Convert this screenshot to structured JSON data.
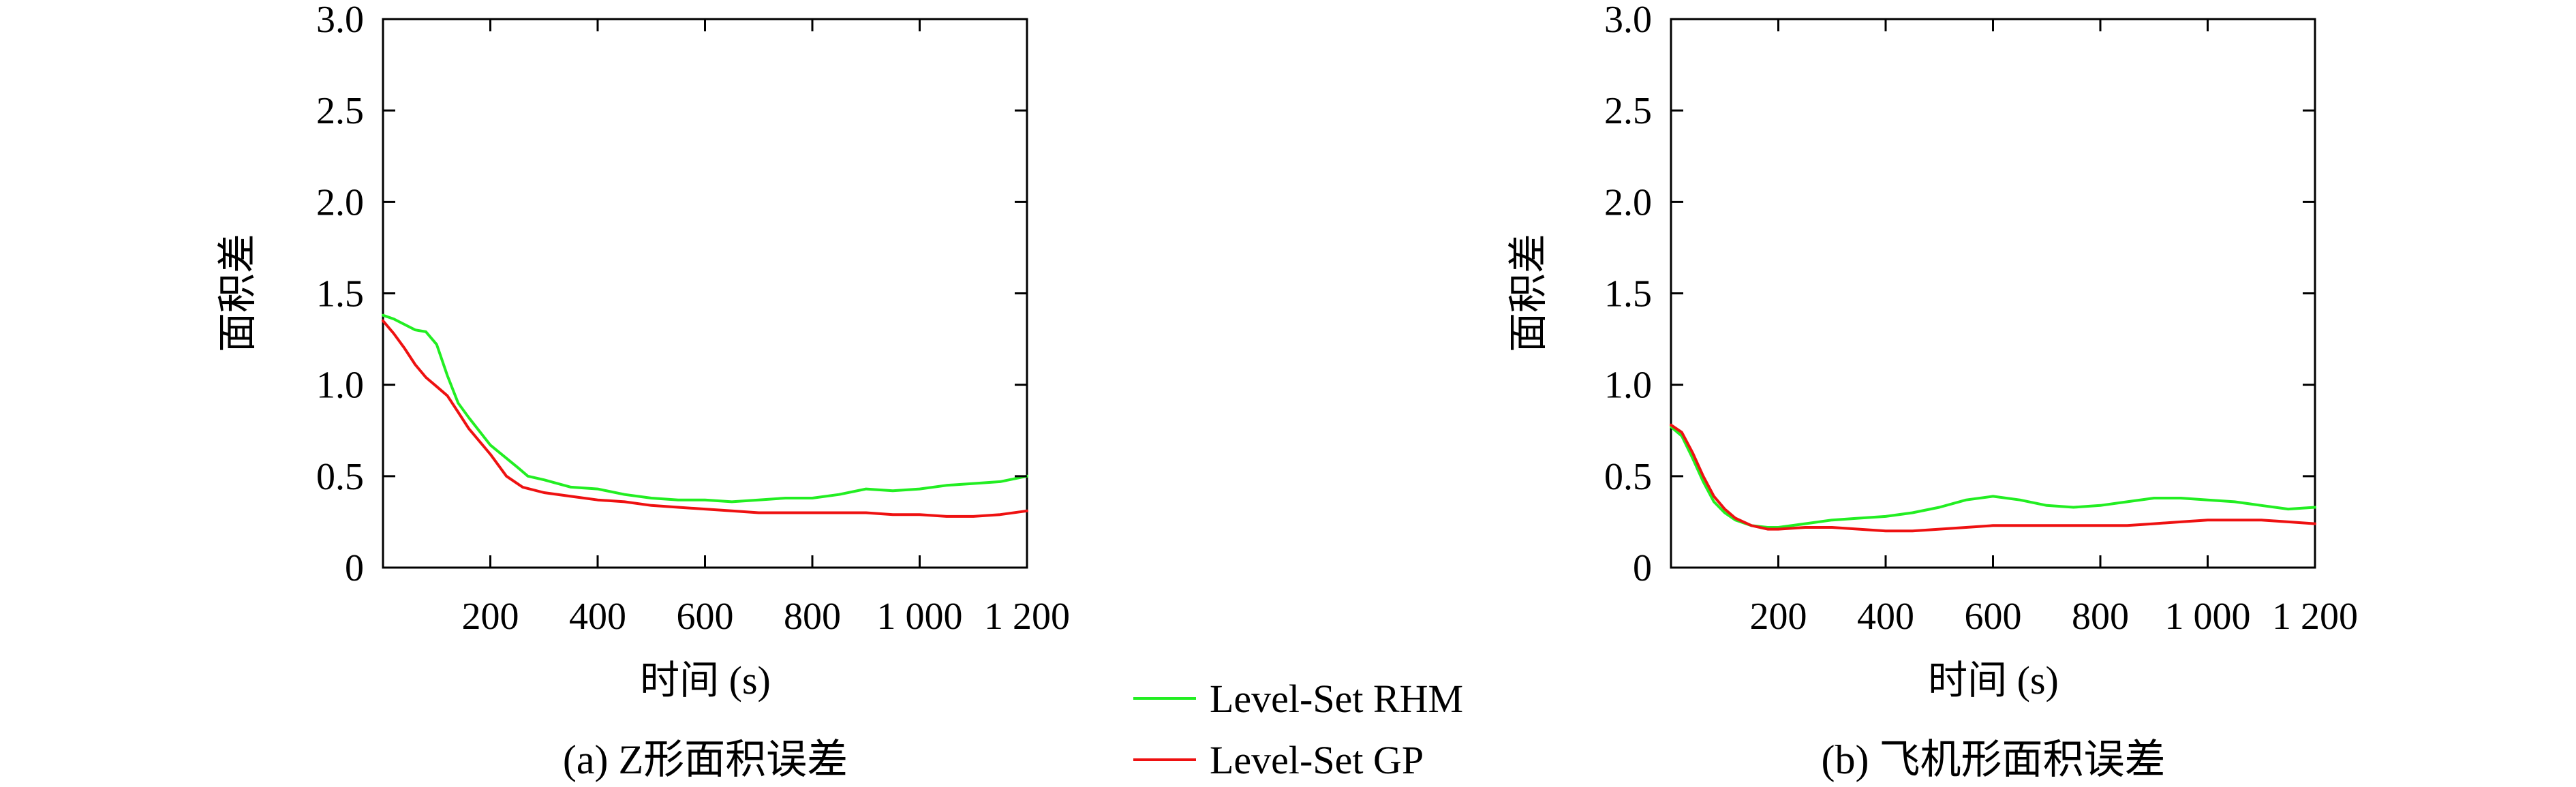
{
  "legend": {
    "items": [
      {
        "label": "Level-Set RHM",
        "color": "#22ee22"
      },
      {
        "label": "Level-Set GP",
        "color": "#ee1111"
      }
    ]
  },
  "chart_data": [
    {
      "type": "line",
      "caption": "(a) Z形面积误差",
      "xlabel": "时间 (s)",
      "ylabel": "面积差",
      "xlim": [
        0,
        1200
      ],
      "ylim": [
        0,
        3.0
      ],
      "xticks": [
        200,
        400,
        600,
        800,
        1000,
        1200
      ],
      "xtick_labels": [
        "200",
        "400",
        "600",
        "800",
        "1 000",
        "1 200"
      ],
      "yticks": [
        0,
        0.5,
        1.0,
        1.5,
        2.0,
        2.5,
        3.0
      ],
      "ytick_labels": [
        "0",
        "0.5",
        "1.0",
        "1.5",
        "2.0",
        "2.5",
        "3.0"
      ],
      "grid": false,
      "series": [
        {
          "name": "Level-Set RHM",
          "color": "#22ee22",
          "x": [
            0,
            20,
            40,
            60,
            80,
            100,
            120,
            140,
            160,
            200,
            250,
            270,
            300,
            350,
            400,
            450,
            500,
            550,
            600,
            650,
            700,
            750,
            800,
            850,
            900,
            950,
            1000,
            1050,
            1100,
            1150,
            1200
          ],
          "y": [
            1.38,
            1.36,
            1.33,
            1.3,
            1.29,
            1.22,
            1.05,
            0.9,
            0.82,
            0.67,
            0.55,
            0.5,
            0.48,
            0.44,
            0.43,
            0.4,
            0.38,
            0.37,
            0.37,
            0.36,
            0.37,
            0.38,
            0.38,
            0.4,
            0.43,
            0.42,
            0.43,
            0.45,
            0.46,
            0.47,
            0.5
          ]
        },
        {
          "name": "Level-Set GP",
          "color": "#ee1111",
          "x": [
            0,
            20,
            40,
            60,
            80,
            100,
            120,
            140,
            160,
            200,
            230,
            260,
            300,
            350,
            400,
            450,
            500,
            550,
            600,
            650,
            700,
            750,
            800,
            850,
            900,
            950,
            1000,
            1050,
            1100,
            1150,
            1200
          ],
          "y": [
            1.35,
            1.28,
            1.2,
            1.11,
            1.04,
            0.99,
            0.94,
            0.85,
            0.76,
            0.62,
            0.5,
            0.44,
            0.41,
            0.39,
            0.37,
            0.36,
            0.34,
            0.33,
            0.32,
            0.31,
            0.3,
            0.3,
            0.3,
            0.3,
            0.3,
            0.29,
            0.29,
            0.28,
            0.28,
            0.29,
            0.31
          ]
        }
      ]
    },
    {
      "type": "line",
      "caption": "(b) 飞机形面积误差",
      "xlabel": "时间 (s)",
      "ylabel": "面积差",
      "xlim": [
        0,
        1200
      ],
      "ylim": [
        0,
        3.0
      ],
      "xticks": [
        200,
        400,
        600,
        800,
        1000,
        1200
      ],
      "xtick_labels": [
        "200",
        "400",
        "600",
        "800",
        "1 000",
        "1 200"
      ],
      "yticks": [
        0,
        0.5,
        1.0,
        1.5,
        2.0,
        2.5,
        3.0
      ],
      "ytick_labels": [
        "0",
        "0.5",
        "1.0",
        "1.5",
        "2.0",
        "2.5",
        "3.0"
      ],
      "grid": false,
      "series": [
        {
          "name": "Level-Set RHM",
          "color": "#22ee22",
          "x": [
            0,
            20,
            40,
            60,
            80,
            100,
            120,
            150,
            180,
            200,
            250,
            300,
            350,
            400,
            450,
            500,
            550,
            600,
            650,
            700,
            750,
            800,
            850,
            900,
            950,
            1000,
            1050,
            1100,
            1150,
            1200
          ],
          "y": [
            0.77,
            0.72,
            0.6,
            0.47,
            0.36,
            0.3,
            0.26,
            0.23,
            0.22,
            0.22,
            0.24,
            0.26,
            0.27,
            0.28,
            0.3,
            0.33,
            0.37,
            0.39,
            0.37,
            0.34,
            0.33,
            0.34,
            0.36,
            0.38,
            0.38,
            0.37,
            0.36,
            0.34,
            0.32,
            0.33
          ]
        },
        {
          "name": "Level-Set GP",
          "color": "#ee1111",
          "x": [
            0,
            20,
            40,
            60,
            80,
            100,
            120,
            150,
            180,
            200,
            250,
            300,
            350,
            400,
            450,
            500,
            550,
            600,
            650,
            700,
            750,
            800,
            850,
            900,
            950,
            1000,
            1050,
            1100,
            1150,
            1200
          ],
          "y": [
            0.78,
            0.74,
            0.63,
            0.5,
            0.39,
            0.32,
            0.27,
            0.23,
            0.21,
            0.21,
            0.22,
            0.22,
            0.21,
            0.2,
            0.2,
            0.21,
            0.22,
            0.23,
            0.23,
            0.23,
            0.23,
            0.23,
            0.23,
            0.24,
            0.25,
            0.26,
            0.26,
            0.26,
            0.25,
            0.24
          ]
        }
      ]
    }
  ]
}
